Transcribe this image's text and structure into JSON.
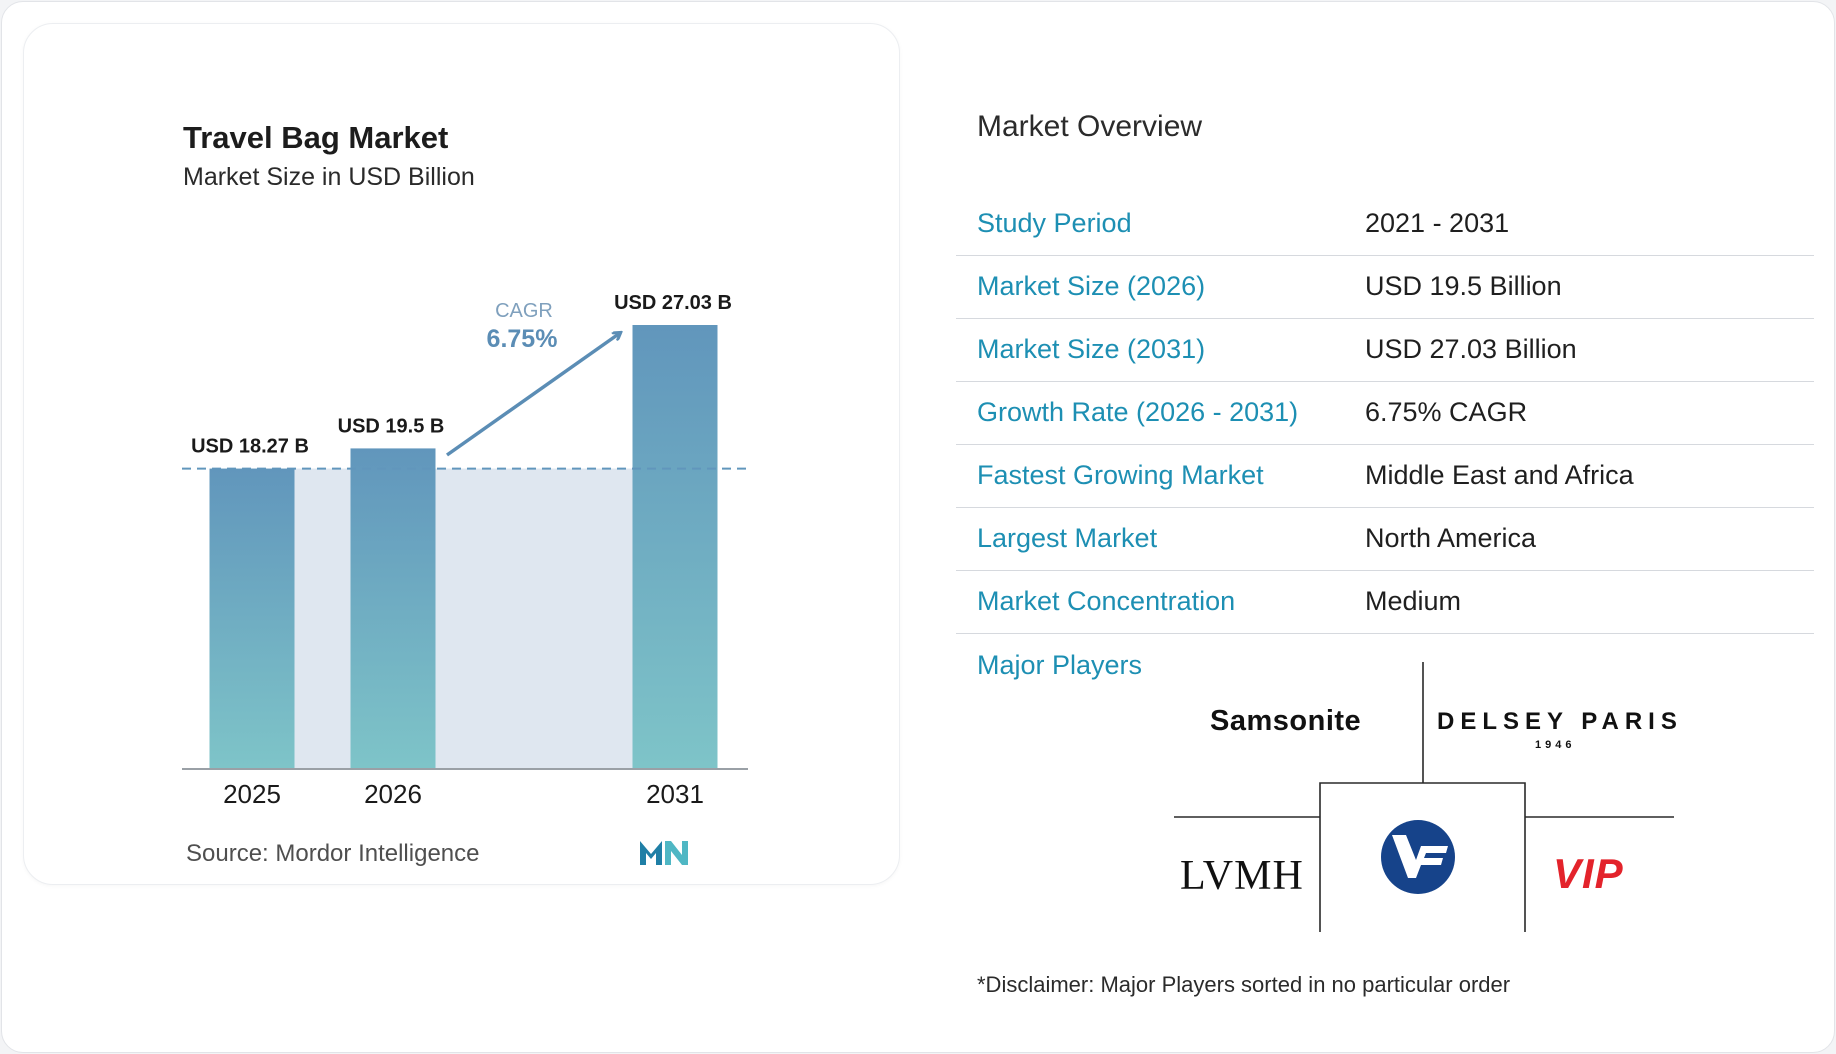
{
  "chart_data": {
    "type": "bar",
    "title": "Travel Bag Market",
    "subtitle": "Market Size in USD Billion",
    "categories": [
      "2025",
      "2026",
      "2031"
    ],
    "values": [
      18.27,
      19.5,
      27.03
    ],
    "data_labels": [
      "USD 18.27 B",
      "USD 19.5 B",
      "USD 27.03 B"
    ],
    "ylim": [
      0,
      27.03
    ],
    "grid": false,
    "annotation": {
      "label": "CAGR",
      "value": "6.75%"
    },
    "source": "Source:  Mordor Intelligence"
  },
  "colors": {
    "bar_top": "#6196bc",
    "bar_bottom": "#7ec4c8",
    "accent": "#1d8fb3",
    "shade": "#dfe7f0",
    "arrow": "#5b8db5"
  },
  "overview": {
    "title": "Market Overview",
    "rows": [
      {
        "label": "Study Period",
        "value": "2021 - 2031"
      },
      {
        "label": "Market Size (2026)",
        "value": "USD 19.5 Billion"
      },
      {
        "label": "Market Size (2031)",
        "value": "USD 27.03 Billion"
      },
      {
        "label": "Growth Rate (2026 - 2031)",
        "value": "6.75% CAGR"
      },
      {
        "label": "Fastest Growing Market",
        "value": "Middle East and Africa"
      },
      {
        "label": "Largest Market",
        "value": "North America"
      },
      {
        "label": "Market Concentration",
        "value": "Medium"
      }
    ]
  },
  "major_players": {
    "title": "Major Players",
    "logos": {
      "samsonite": "Samsonite",
      "delsey": "DELSEY PARIS",
      "delsey_year": "1946",
      "lvmh": "LVMH",
      "vf": "VF",
      "vip": "VIP"
    }
  },
  "disclaimer": "*Disclaimer: Major Players sorted in no particular order"
}
